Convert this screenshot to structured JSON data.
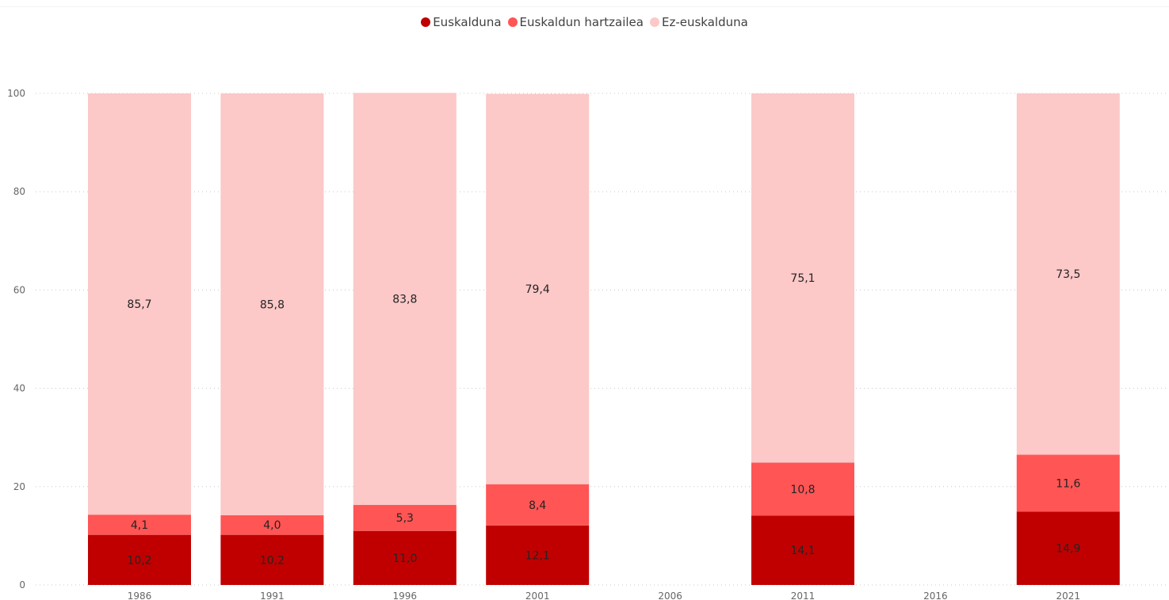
{
  "legend": {
    "items": [
      {
        "label": "Euskalduna",
        "color": "#c00000"
      },
      {
        "label": "Euskaldun hartzailea",
        "color": "#ff5555"
      },
      {
        "label": "Ez-euskalduna",
        "color": "#fcc8c8"
      }
    ]
  },
  "chart_data": {
    "type": "bar",
    "stacked": true,
    "categories": [
      "1986",
      "1991",
      "1996",
      "2001",
      "2006",
      "2011",
      "2016",
      "2021"
    ],
    "series": [
      {
        "name": "Euskalduna",
        "color": "#c00000",
        "values": [
          10.2,
          10.2,
          11.0,
          12.1,
          null,
          14.1,
          null,
          14.9
        ],
        "labels": [
          "10,2",
          "10,2",
          "11,0",
          "12,1",
          "",
          "14,1",
          "",
          "14,9"
        ]
      },
      {
        "name": "Euskaldun hartzailea",
        "color": "#ff5555",
        "values": [
          4.1,
          4.0,
          5.3,
          8.4,
          null,
          10.8,
          null,
          11.6
        ],
        "labels": [
          "4,1",
          "4,0",
          "5,3",
          "8,4",
          "",
          "10,8",
          "",
          "11,6"
        ]
      },
      {
        "name": "Ez-euskalduna",
        "color": "#fcc8c8",
        "values": [
          85.7,
          85.8,
          83.8,
          79.4,
          null,
          75.1,
          null,
          73.5
        ],
        "labels": [
          "85,7",
          "85,8",
          "83,8",
          "79,4",
          "",
          "75,1",
          "",
          "73,5"
        ]
      }
    ],
    "yticks": [
      "0",
      "20",
      "40",
      "60",
      "80",
      "100"
    ],
    "ylim": [
      0,
      100
    ],
    "grid": true,
    "legend_position": "top-center"
  }
}
